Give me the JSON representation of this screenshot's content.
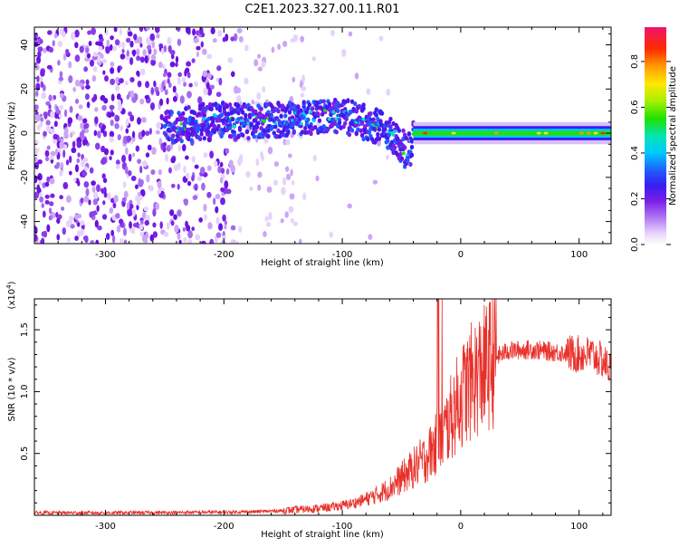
{
  "title": "C2E1.2023.327.00.11.R01",
  "chart_data": [
    {
      "type": "heatmap",
      "name": "spectrogram",
      "xlabel": "Height of straight line (km)",
      "ylabel": "Frequency (Hz)",
      "xlim": [
        -360,
        127
      ],
      "ylim": [
        -50,
        48
      ],
      "xticks": [
        -300,
        -200,
        -100,
        0,
        100
      ],
      "xtick_labels": [
        "-300",
        "-200",
        "-100",
        "0",
        "100"
      ],
      "yticks": [
        -40,
        -20,
        0,
        20,
        40
      ],
      "ytick_labels": [
        "-40",
        "-20",
        "0",
        "20",
        "40"
      ],
      "ridge": {
        "description_free": true,
        "x": [
          -250,
          -220,
          -200,
          -180,
          -160,
          -140,
          -120,
          -100,
          -80,
          -60,
          -50,
          -45,
          -40,
          -35,
          -30,
          -20,
          -10,
          0,
          20,
          50,
          80,
          100,
          127
        ],
        "y": [
          2,
          5,
          6,
          5,
          6,
          7,
          8,
          8,
          5,
          1,
          -5,
          -10,
          -3,
          -2,
          -1,
          0,
          1,
          1,
          0,
          0,
          0,
          0,
          0
        ]
      },
      "colorbar": {
        "label": "Normalized spectral amplitude",
        "range": [
          0.0,
          0.95
        ],
        "ticks": [
          0.0,
          0.2,
          0.4,
          0.6,
          0.8
        ],
        "tick_labels": [
          "0.0",
          "0.2",
          "0.4",
          "0.6",
          "0.8"
        ]
      }
    },
    {
      "type": "line",
      "name": "snr",
      "xlabel": "Height of straight line (km)",
      "ylabel": "SNR (10 * v/v)",
      "yscale_label": "(x10",
      "yscale_exp": "4",
      "yscale_close": ")",
      "xlim": [
        -360,
        127
      ],
      "ylim": [
        0,
        17500
      ],
      "xticks": [
        -300,
        -200,
        -100,
        0,
        100
      ],
      "xtick_labels": [
        "-300",
        "-200",
        "-100",
        "0",
        "100"
      ],
      "yticks": [
        5000,
        10000,
        15000
      ],
      "ytick_labels": [
        "0.5",
        "1.0",
        "1.5"
      ],
      "series": [
        {
          "name": "SNR",
          "color": "#e8302a",
          "x": [
            -360,
            -300,
            -250,
            -200,
            -170,
            -150,
            -130,
            -110,
            -100,
            -90,
            -80,
            -70,
            -60,
            -50,
            -40,
            -30,
            -25,
            -20,
            -15,
            -10,
            -5,
            0,
            5,
            10,
            15,
            20,
            25,
            30,
            40,
            60,
            80,
            100,
            110,
            120,
            127
          ],
          "y": [
            200,
            200,
            220,
            250,
            300,
            380,
            500,
            650,
            800,
            1000,
            1300,
            1700,
            2200,
            3000,
            3800,
            4600,
            5200,
            5800,
            6500,
            7500,
            8600,
            9500,
            10300,
            10900,
            11400,
            11800,
            12300,
            12800,
            13300,
            13400,
            13200,
            13000,
            13000,
            12500,
            11800
          ]
        }
      ]
    }
  ]
}
